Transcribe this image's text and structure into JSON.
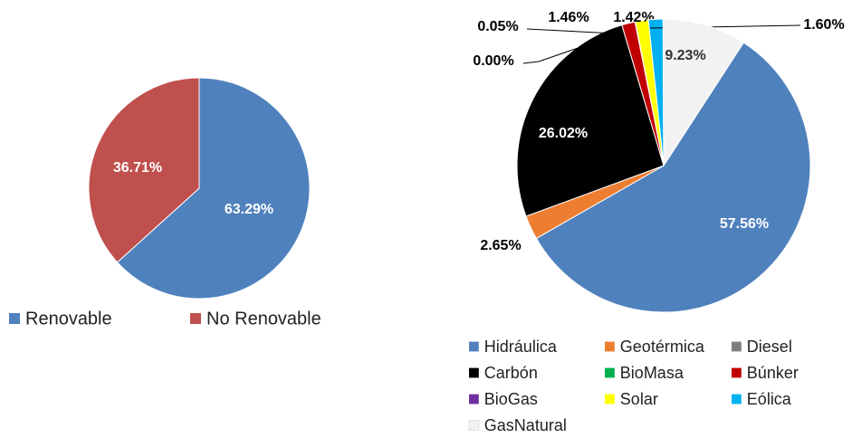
{
  "chart_data": [
    {
      "type": "pie",
      "categories": [
        "Renovable",
        "No Renovable"
      ],
      "values": [
        63.29,
        36.71
      ],
      "value_labels": [
        "63.29%",
        "36.71%"
      ],
      "colors": [
        "#4f81bd",
        "#c0504d"
      ],
      "legend": "bottom"
    },
    {
      "type": "pie",
      "categories": [
        "Hidráulica",
        "Geotérmica",
        "Diesel",
        "Carbón",
        "BioMasa",
        "Búnker",
        "BioGas",
        "Solar",
        "Eólica",
        "GasNatural"
      ],
      "values": [
        57.56,
        2.65,
        null,
        26.02,
        0.0,
        1.46,
        0.05,
        1.42,
        1.6,
        9.23
      ],
      "value_labels": [
        "57.56%",
        "2.65%",
        null,
        "26.02%",
        "0.00%",
        "1.46%",
        "0.05%",
        "1.42%",
        "1.60%",
        "9.23%"
      ],
      "colors": [
        "#4f81bd",
        "#ed7d31",
        "#7f7f7f",
        "#000000",
        "#00b050",
        "#c00000",
        "#7030a0",
        "#ffff00",
        "#00b0f0",
        "#f2f2f2"
      ],
      "legend": "bottom"
    }
  ]
}
